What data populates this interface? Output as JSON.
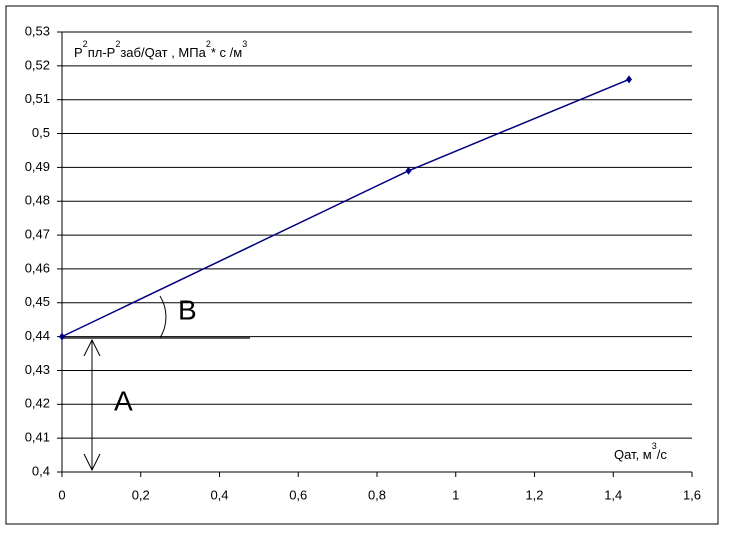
{
  "chart_data": {
    "type": "line",
    "ylabel": [
      {
        "text": "Р"
      },
      {
        "sup": "2"
      },
      {
        "text": "пл-Р"
      },
      {
        "sup": "2"
      },
      {
        "text": "заб/Qат , МПа"
      },
      {
        "sup": "2"
      },
      {
        "text": "* с /м"
      },
      {
        "sup": "3"
      }
    ],
    "xlabel": [
      {
        "text": "Qат, м"
      },
      {
        "sup": "3"
      },
      {
        "text": "/с"
      }
    ],
    "annotations": [
      "B",
      "A"
    ],
    "x": [
      0,
      0.88,
      1.44
    ],
    "series": [
      {
        "color": "#000080",
        "values": [
          0.44,
          0.489,
          0.516
        ]
      }
    ],
    "xlim": [
      0,
      1.6
    ],
    "ylim": [
      0.4,
      0.53
    ],
    "xticks": [
      0,
      {
        "value": 0.2,
        "label": "0,2"
      },
      {
        "value": 0.4,
        "label": "0,4"
      },
      {
        "value": 0.6,
        "label": "0,6"
      },
      {
        "value": 0.8,
        "label": "0,8"
      },
      1,
      {
        "value": 1.2,
        "label": "1,2"
      },
      {
        "value": 1.4,
        "label": "1,4"
      },
      {
        "value": 1.6,
        "label": "1,6"
      }
    ],
    "yticks": [
      {
        "value": 0.4,
        "label": "0,4"
      },
      {
        "value": 0.41,
        "label": "0,41"
      },
      {
        "value": 0.42,
        "label": "0,42"
      },
      {
        "value": 0.43,
        "label": "0,43"
      },
      {
        "value": 0.44,
        "label": "0,44"
      },
      {
        "value": 0.45,
        "label": "0,45"
      },
      {
        "value": 0.46,
        "label": "0,46"
      },
      {
        "value": 0.47,
        "label": "0,47"
      },
      {
        "value": 0.48,
        "label": "0,48"
      },
      {
        "value": 0.49,
        "label": "0,49"
      },
      {
        "value": 0.5,
        "label": "0,5"
      },
      {
        "value": 0.51,
        "label": "0,51"
      },
      {
        "value": 0.52,
        "label": "0,52"
      },
      {
        "value": 0.53,
        "label": "0,53"
      }
    ],
    "grid": true
  }
}
